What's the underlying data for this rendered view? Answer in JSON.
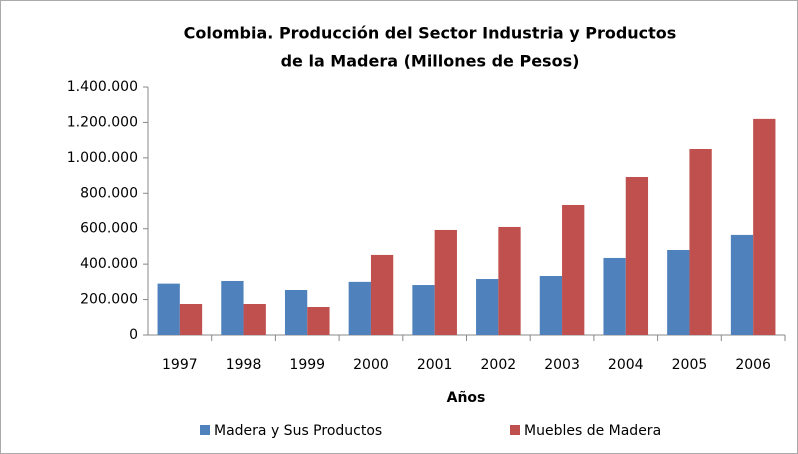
{
  "chart_data": {
    "type": "bar",
    "title": [
      "Colombia. Producción del Sector  Industria y Productos",
      "de la Madera  (Millones de Pesos)"
    ],
    "x_label": "Años",
    "categories": [
      "1997",
      "1998",
      "1999",
      "2000",
      "2001",
      "2002",
      "2003",
      "2004",
      "2005",
      "2006"
    ],
    "series": [
      {
        "name": "Madera y Sus Productos",
        "color": "#4f81bd",
        "values": [
          290000,
          305000,
          254000,
          300000,
          282000,
          316000,
          333000,
          435000,
          480000,
          565000
        ]
      },
      {
        "name": "Muebles de Madera",
        "color": "#c0504d",
        "values": [
          175000,
          175000,
          158000,
          452000,
          593000,
          610000,
          734000,
          892000,
          1050000,
          1220000
        ]
      }
    ],
    "ylim": [
      0,
      1400000
    ],
    "yticks": [
      0,
      {
        "value": 200000,
        "label": "200.000"
      },
      {
        "value": 400000,
        "label": "400.000"
      },
      {
        "value": 600000,
        "label": "600.000"
      },
      {
        "value": 800000,
        "label": "800.000"
      },
      {
        "value": 1000000,
        "label": "1.000.000"
      },
      {
        "value": 1200000,
        "label": "1.200.000"
      },
      {
        "value": 1400000,
        "label": "1.400.000"
      }
    ],
    "grid": false,
    "legend": "bottom"
  }
}
